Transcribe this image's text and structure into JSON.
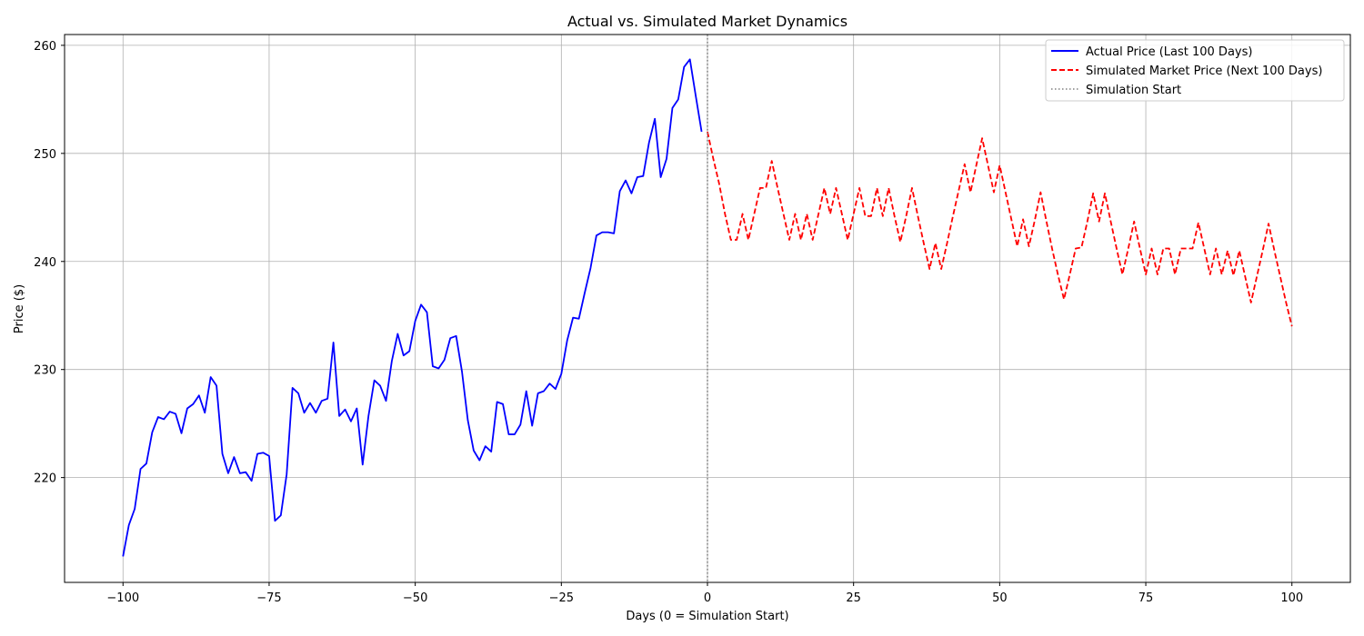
{
  "chart_data": {
    "type": "line",
    "title": "Actual vs. Simulated Market Dynamics",
    "xlabel": "Days (0 = Simulation Start)",
    "ylabel": "Price ($)",
    "xlim": [
      -110,
      110
    ],
    "ylim": [
      210.3,
      261
    ],
    "x_ticks": [
      -100,
      -75,
      -50,
      -25,
      0,
      25,
      50,
      75,
      100
    ],
    "x_tick_labels": [
      "−100",
      "−75",
      "−50",
      "−25",
      "0",
      "25",
      "50",
      "75",
      "100"
    ],
    "y_ticks": [
      220,
      230,
      240,
      250,
      260
    ],
    "y_tick_labels": [
      "220",
      "230",
      "240",
      "250",
      "260"
    ],
    "grid": true,
    "legend_position": "top-right",
    "series": [
      {
        "name": "Actual Price (Last 100 Days)",
        "color": "#0000ff",
        "style": "solid",
        "x_start": -100,
        "x_step": 1,
        "values": [
          212.7,
          215.6,
          217.1,
          220.8,
          221.3,
          224.2,
          225.6,
          225.4,
          226.1,
          225.9,
          224.1,
          226.4,
          226.8,
          227.6,
          226.0,
          229.3,
          228.5,
          222.2,
          220.4,
          221.9,
          220.4,
          220.5,
          219.7,
          222.2,
          222.3,
          222.0,
          216.0,
          216.5,
          220.3,
          228.3,
          227.8,
          226.0,
          226.9,
          226.0,
          227.1,
          227.3,
          232.5,
          225.7,
          226.3,
          225.2,
          226.4,
          221.2,
          225.7,
          229.0,
          228.5,
          227.1,
          230.8,
          233.3,
          231.3,
          231.7,
          234.5,
          236.0,
          235.3,
          230.3,
          230.1,
          230.9,
          232.9,
          233.1,
          229.8,
          225.3,
          222.5,
          221.6,
          222.9,
          222.4,
          227.0,
          226.8,
          224.0,
          224.0,
          224.9,
          228.0,
          224.8,
          227.8,
          228.0,
          228.7,
          228.2,
          229.6,
          232.7,
          234.8,
          234.7,
          237.1,
          239.4,
          242.4,
          242.7,
          242.7,
          242.6,
          246.5,
          247.5,
          246.3,
          247.8,
          247.9,
          251.0,
          253.2,
          247.8,
          249.5,
          254.2,
          255.0,
          258.0,
          258.7,
          255.3,
          252.0
        ]
      },
      {
        "name": "Simulated Market Price (Next 100 Days)",
        "color": "#ff0000",
        "style": "dashed",
        "x_start": 0,
        "x_step": 1,
        "values": [
          252.0,
          249.5,
          247.2,
          244.4,
          242.0,
          242.0,
          244.4,
          242.0,
          244.4,
          246.8,
          246.8,
          249.3,
          246.8,
          244.4,
          242.0,
          244.4,
          242.0,
          244.4,
          242.0,
          244.4,
          246.8,
          244.4,
          246.8,
          244.4,
          242.0,
          244.4,
          246.8,
          244.2,
          244.2,
          246.8,
          244.2,
          246.8,
          244.2,
          241.8,
          244.2,
          246.8,
          244.2,
          241.7,
          239.3,
          241.7,
          239.3,
          241.7,
          244.2,
          246.6,
          249.0,
          246.4,
          248.9,
          251.4,
          248.9,
          246.4,
          248.9,
          246.4,
          243.9,
          241.4,
          243.9,
          241.4,
          243.8,
          246.4,
          243.7,
          241.1,
          238.7,
          236.5,
          238.8,
          241.2,
          241.3,
          243.7,
          246.3,
          243.7,
          246.3,
          243.7,
          241.2,
          238.8,
          241.2,
          243.7,
          241.2,
          238.8,
          241.2,
          238.8,
          241.2,
          241.2,
          238.8,
          241.2,
          241.2,
          241.2,
          243.6,
          241.2,
          238.8,
          241.2,
          238.8,
          241.0,
          238.7,
          241.0,
          238.6,
          236.2,
          238.6,
          241.0,
          243.5,
          241.0,
          238.6,
          236.2,
          234.0
        ]
      },
      {
        "name": "Simulation Start",
        "color": "#808080",
        "style": "dotted",
        "x_value": 0
      }
    ]
  }
}
